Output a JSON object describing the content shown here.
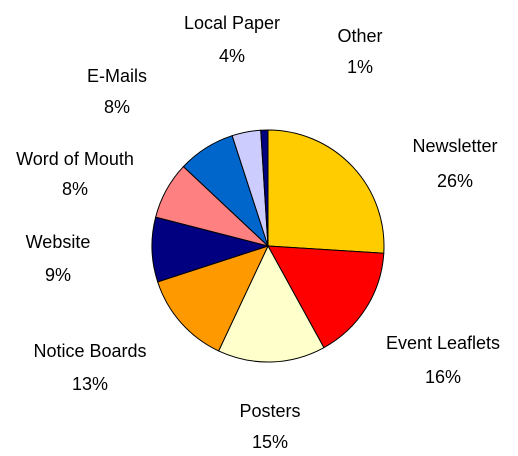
{
  "chart_data": {
    "type": "pie",
    "categories": [
      "Newsletter",
      "Event Leaflets",
      "Posters",
      "Notice Boards",
      "Website",
      "Word of Mouth",
      "E-Mails",
      "Local Paper",
      "Other"
    ],
    "values": [
      26,
      16,
      15,
      13,
      9,
      8,
      8,
      4,
      1
    ],
    "value_labels": [
      "26%",
      "16%",
      "15%",
      "13%",
      "9%",
      "8%",
      "8%",
      "4%",
      "1%"
    ],
    "colors": [
      "#ffcc00",
      "#ff0000",
      "#ffffcc",
      "#ff9900",
      "#000080",
      "#ff8080",
      "#0066cc",
      "#ccccff",
      "#000080"
    ]
  }
}
